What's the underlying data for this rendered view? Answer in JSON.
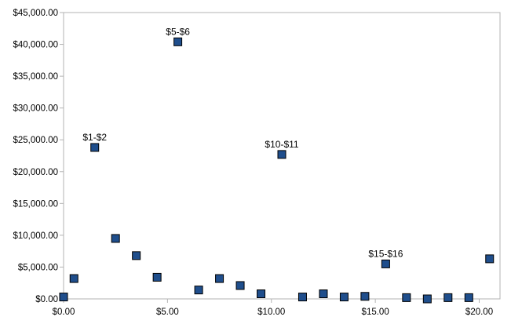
{
  "chart_data": {
    "type": "scatter",
    "title": "",
    "xlabel": "",
    "ylabel": "",
    "xlim": [
      0,
      21
    ],
    "ylim": [
      0,
      45000
    ],
    "x_ticks": [
      0,
      5,
      10,
      15,
      20
    ],
    "x_tick_labels": [
      "$0.00",
      "$5.00",
      "$10.00",
      "$15.00",
      "$20.00"
    ],
    "y_ticks": [
      0,
      5000,
      10000,
      15000,
      20000,
      25000,
      30000,
      35000,
      40000,
      45000
    ],
    "y_tick_labels": [
      "$0.00",
      "$5,000.00",
      "$10,000.00",
      "$15,000.00",
      "$20,000.00",
      "$25,000.00",
      "$30,000.00",
      "$35,000.00",
      "$40,000.00",
      "$45,000.00"
    ],
    "grid": false,
    "legend": "none",
    "marker": "square",
    "marker_color": "#1f4e8c",
    "marker_edge_color": "#000000",
    "points": [
      {
        "x": 0.0,
        "y": 300
      },
      {
        "x": 0.5,
        "y": 3200
      },
      {
        "x": 1.5,
        "y": 23800,
        "label": "$1-$2"
      },
      {
        "x": 2.5,
        "y": 9500
      },
      {
        "x": 3.5,
        "y": 6800
      },
      {
        "x": 4.5,
        "y": 3400
      },
      {
        "x": 5.5,
        "y": 40400,
        "label": "$5-$6"
      },
      {
        "x": 6.5,
        "y": 1400
      },
      {
        "x": 7.5,
        "y": 3200
      },
      {
        "x": 8.5,
        "y": 2100
      },
      {
        "x": 9.5,
        "y": 800
      },
      {
        "x": 10.5,
        "y": 22700,
        "label": "$10-$11"
      },
      {
        "x": 11.5,
        "y": 300
      },
      {
        "x": 12.5,
        "y": 800
      },
      {
        "x": 13.5,
        "y": 300
      },
      {
        "x": 14.5,
        "y": 400
      },
      {
        "x": 15.5,
        "y": 5500,
        "label": "$15-$16"
      },
      {
        "x": 16.5,
        "y": 200
      },
      {
        "x": 17.5,
        "y": 0
      },
      {
        "x": 18.5,
        "y": 200
      },
      {
        "x": 19.5,
        "y": 200
      },
      {
        "x": 20.5,
        "y": 6300
      }
    ]
  }
}
